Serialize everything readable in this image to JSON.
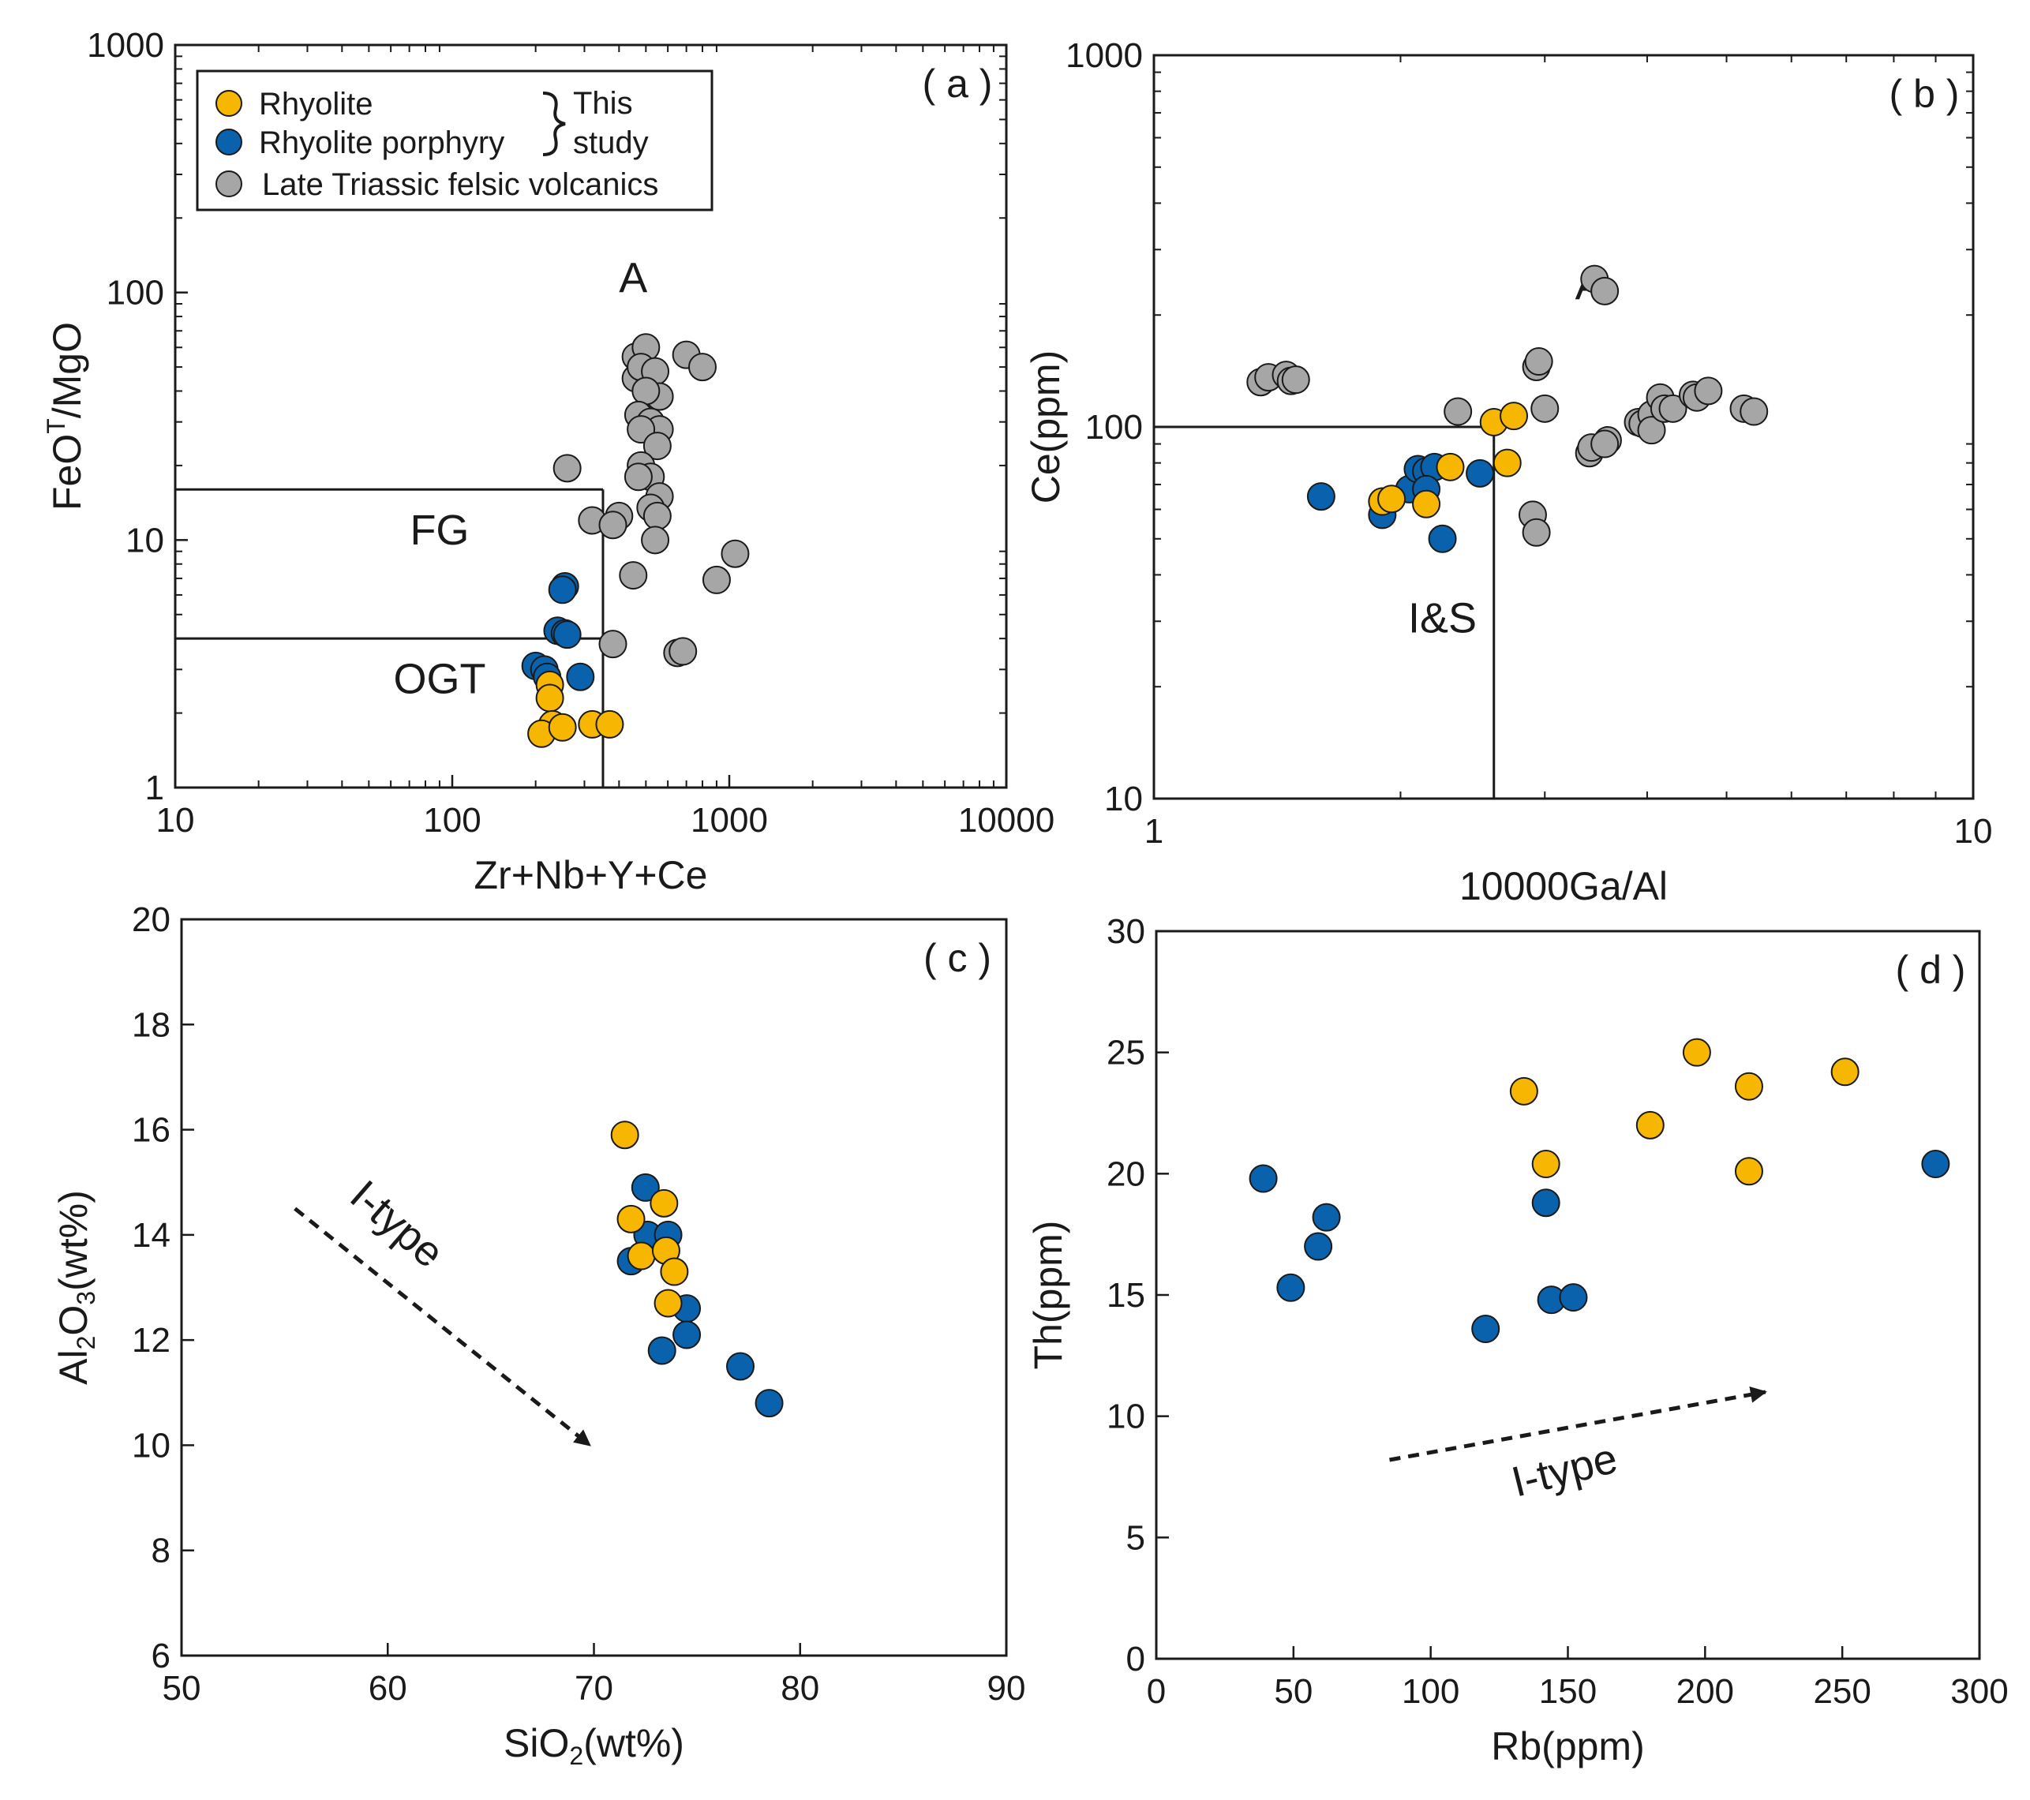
{
  "colors": {
    "rhyolite": "#F7B600",
    "rhyolite_porphyry": "#0A62AC",
    "late_triassic": "#A6A6A6",
    "marker_edge": "#1a1a1a",
    "axis": "#1a1a1a"
  },
  "legend": {
    "items": [
      {
        "label": "Rhyolite",
        "color": "#F7B600"
      },
      {
        "label": "Rhyolite porphyry",
        "color": "#0A62AC"
      },
      {
        "label": "Late  Triassic felsic volcanics",
        "color": "#A6A6A6"
      }
    ],
    "brace_line1": "This",
    "brace_line2": "study"
  },
  "chart_data": [
    {
      "id": "a",
      "type": "scatter",
      "panel_label": "( a )",
      "xlabel": "Zr+Nb+Y+Ce",
      "ylabel_main": "FeO",
      "ylabel_sup": "T",
      "ylabel_rest": "/MgO",
      "xscale": "log",
      "yscale": "log",
      "xlim": [
        10,
        10000
      ],
      "ylim": [
        1,
        1000
      ],
      "xticks": [
        {
          "v": 10,
          "label": "10"
        },
        {
          "v": 100,
          "label": "100"
        },
        {
          "v": 1000,
          "label": "1000"
        },
        {
          "v": 10000,
          "label": "10000"
        }
      ],
      "yticks": [
        {
          "v": 1,
          "label": "1"
        },
        {
          "v": 10,
          "label": "10"
        },
        {
          "v": 100,
          "label": "100"
        },
        {
          "v": 1000,
          "label": "1000"
        }
      ],
      "regions": [
        {
          "label": "A",
          "x": 450,
          "y": 100
        },
        {
          "label": "FG",
          "x": 90,
          "y": 9.6
        },
        {
          "label": "OGT",
          "x": 90,
          "y": 2.4
        }
      ],
      "boundaries": [
        {
          "x1": 10,
          "y1": 16,
          "x2": 350,
          "y2": 16
        },
        {
          "x1": 10,
          "y1": 4,
          "x2": 350,
          "y2": 4
        },
        {
          "x1": 350,
          "y1": 1,
          "x2": 350,
          "y2": 16
        }
      ],
      "series": [
        {
          "name": "Late Triassic felsic volcanics",
          "color": "#A6A6A6",
          "points": [
            [
              260,
              19.5
            ],
            [
              320,
              12
            ],
            [
              400,
              12.5
            ],
            [
              380,
              11.5
            ],
            [
              450,
              7.2
            ],
            [
              380,
              3.8
            ],
            [
              460,
              55
            ],
            [
              500,
              60
            ],
            [
              460,
              45
            ],
            [
              480,
              50
            ],
            [
              540,
              48
            ],
            [
              560,
              38
            ],
            [
              500,
              40
            ],
            [
              470,
              32
            ],
            [
              520,
              30
            ],
            [
              560,
              28
            ],
            [
              480,
              28
            ],
            [
              550,
              24
            ],
            [
              480,
              20
            ],
            [
              520,
              18
            ],
            [
              470,
              18
            ],
            [
              560,
              15
            ],
            [
              520,
              13.5
            ],
            [
              550,
              12.5
            ],
            [
              540,
              10
            ],
            [
              700,
              56
            ],
            [
              800,
              50
            ],
            [
              650,
              3.5
            ],
            [
              680,
              3.55
            ],
            [
              900,
              6.9
            ],
            [
              1050,
              8.8
            ]
          ]
        },
        {
          "name": "Rhyolite porphyry",
          "color": "#0A62AC",
          "points": [
            [
              255,
              6.5
            ],
            [
              250,
              6.3
            ],
            [
              240,
              4.3
            ],
            [
              255,
              4.2
            ],
            [
              260,
              4.15
            ],
            [
              200,
              3.1
            ],
            [
              215,
              3.0
            ],
            [
              220,
              2.8
            ],
            [
              290,
              2.8
            ]
          ]
        },
        {
          "name": "Rhyolite",
          "color": "#F7B600",
          "points": [
            [
              225,
              2.6
            ],
            [
              225,
              2.3
            ],
            [
              230,
              1.8
            ],
            [
              210,
              1.65
            ],
            [
              250,
              1.75
            ],
            [
              320,
              1.8
            ],
            [
              370,
              1.8
            ]
          ]
        }
      ]
    },
    {
      "id": "b",
      "type": "scatter",
      "panel_label": "( b )",
      "xlabel": "10000Ga/Al",
      "ylabel": "Ce(ppm)",
      "xscale": "log",
      "yscale": "log",
      "xlim": [
        1,
        10
      ],
      "ylim": [
        10,
        1000
      ],
      "xticks": [
        {
          "v": 1,
          "label": "1"
        },
        {
          "v": 10,
          "label": "10"
        }
      ],
      "yticks": [
        {
          "v": 10,
          "label": "10"
        },
        {
          "v": 100,
          "label": "100"
        },
        {
          "v": 1000,
          "label": "1000"
        }
      ],
      "regions": [
        {
          "label": "A",
          "x": 3.4,
          "y": 220
        },
        {
          "label": "I&S",
          "x": 2.25,
          "y": 28
        }
      ],
      "boundaries": [
        {
          "x1": 1,
          "y1": 100,
          "x2": 2.6,
          "y2": 100
        },
        {
          "x1": 2.6,
          "y1": 10,
          "x2": 2.6,
          "y2": 100
        }
      ],
      "series": [
        {
          "name": "Late Triassic felsic volcanics",
          "color": "#A6A6A6",
          "points": [
            [
              1.35,
              132
            ],
            [
              1.38,
              136
            ],
            [
              1.45,
              138
            ],
            [
              1.47,
              133
            ],
            [
              1.49,
              134
            ],
            [
              2.35,
              110
            ],
            [
              2.9,
              58
            ],
            [
              2.93,
              52
            ],
            [
              2.93,
              145
            ],
            [
              2.95,
              150
            ],
            [
              3.0,
              112
            ],
            [
              3.45,
              250
            ],
            [
              3.55,
              232
            ],
            [
              3.4,
              85
            ],
            [
              3.42,
              88
            ],
            [
              3.58,
              92
            ],
            [
              3.55,
              90
            ],
            [
              3.9,
              103
            ],
            [
              3.95,
              102
            ],
            [
              4.05,
              108
            ],
            [
              4.05,
              98
            ],
            [
              4.15,
              120
            ],
            [
              4.2,
              112
            ],
            [
              4.3,
              112
            ],
            [
              4.55,
              122
            ],
            [
              4.6,
              120
            ],
            [
              4.75,
              125
            ],
            [
              5.25,
              112
            ],
            [
              5.4,
              110
            ]
          ]
        },
        {
          "name": "Rhyolite porphyry",
          "color": "#0A62AC",
          "points": [
            [
              1.6,
              65
            ],
            [
              1.9,
              58
            ],
            [
              2.05,
              68
            ],
            [
              2.1,
              77
            ],
            [
              2.15,
              76
            ],
            [
              2.2,
              78
            ],
            [
              2.15,
              68
            ],
            [
              2.25,
              50
            ],
            [
              2.5,
              75
            ]
          ]
        },
        {
          "name": "Rhyolite",
          "color": "#F7B600",
          "points": [
            [
              1.9,
              63
            ],
            [
              1.95,
              64
            ],
            [
              2.15,
              62
            ],
            [
              2.3,
              78
            ],
            [
              2.6,
              103
            ],
            [
              2.75,
              107
            ],
            [
              2.7,
              80
            ]
          ]
        }
      ]
    },
    {
      "id": "c",
      "type": "scatter",
      "panel_label": "( c )",
      "xlabel_main": "SiO",
      "xlabel_sub": "2",
      "xlabel_rest": "(wt%)",
      "ylabel_main": "Al",
      "ylabel_sub1": "2",
      "ylabel_mid": "O",
      "ylabel_sub2": "3",
      "ylabel_rest": "(wt%)",
      "xscale": "linear",
      "yscale": "linear",
      "xlim": [
        50,
        90
      ],
      "ylim": [
        6,
        20
      ],
      "xticks": [
        {
          "v": 50,
          "label": "50"
        },
        {
          "v": 60,
          "label": "60"
        },
        {
          "v": 70,
          "label": "70"
        },
        {
          "v": 80,
          "label": "80"
        },
        {
          "v": 90,
          "label": "90"
        }
      ],
      "yticks": [
        {
          "v": 6,
          "label": "6"
        },
        {
          "v": 8,
          "label": "8"
        },
        {
          "v": 10,
          "label": "10"
        },
        {
          "v": 12,
          "label": "12"
        },
        {
          "v": 14,
          "label": "14"
        },
        {
          "v": 16,
          "label": "16"
        },
        {
          "v": 18,
          "label": "18"
        },
        {
          "v": 20,
          "label": "20"
        }
      ],
      "annotation": {
        "text": "I-type",
        "x": 60,
        "y": 14.0,
        "angle": 41
      },
      "arrow": {
        "x1": 55.5,
        "y1": 14.5,
        "x2": 69.8,
        "y2": 10.0
      },
      "series": [
        {
          "name": "Rhyolite porphyry",
          "color": "#0A62AC",
          "points": [
            [
              72.5,
              14.9
            ],
            [
              72.6,
              14.0
            ],
            [
              73.6,
              14.0
            ],
            [
              71.8,
              13.5
            ],
            [
              74.5,
              12.6
            ],
            [
              74.5,
              12.1
            ],
            [
              73.3,
              11.8
            ],
            [
              77.1,
              11.5
            ],
            [
              78.5,
              10.8
            ]
          ]
        },
        {
          "name": "Rhyolite",
          "color": "#F7B600",
          "points": [
            [
              71.5,
              15.9
            ],
            [
              71.8,
              14.3
            ],
            [
              73.4,
              14.6
            ],
            [
              72.3,
              13.6
            ],
            [
              73.5,
              13.7
            ],
            [
              73.9,
              13.3
            ],
            [
              73.6,
              12.7
            ]
          ]
        }
      ]
    },
    {
      "id": "d",
      "type": "scatter",
      "panel_label": "( d )",
      "xlabel": "Rb(ppm)",
      "ylabel": "Th(ppm)",
      "xscale": "linear",
      "yscale": "linear",
      "xlim": [
        0,
        300
      ],
      "ylim": [
        0,
        30
      ],
      "xticks": [
        {
          "v": 0,
          "label": "0"
        },
        {
          "v": 50,
          "label": "50"
        },
        {
          "v": 100,
          "label": "100"
        },
        {
          "v": 150,
          "label": "150"
        },
        {
          "v": 200,
          "label": "200"
        },
        {
          "v": 250,
          "label": "250"
        },
        {
          "v": 300,
          "label": "300"
        }
      ],
      "yticks": [
        {
          "v": 0,
          "label": "0"
        },
        {
          "v": 5,
          "label": "5"
        },
        {
          "v": 10,
          "label": "10"
        },
        {
          "v": 15,
          "label": "15"
        },
        {
          "v": 20,
          "label": "20"
        },
        {
          "v": 25,
          "label": "25"
        },
        {
          "v": 30,
          "label": "30"
        }
      ],
      "annotation": {
        "text": "I-type",
        "x": 150,
        "y": 7.2,
        "angle": -14
      },
      "arrow": {
        "x1": 85,
        "y1": 8.2,
        "x2": 222,
        "y2": 11.0
      },
      "series": [
        {
          "name": "Rhyolite porphyry",
          "color": "#0A62AC",
          "points": [
            [
              39,
              19.8
            ],
            [
              49,
              15.3
            ],
            [
              59,
              17.0
            ],
            [
              62,
              18.2
            ],
            [
              120,
              13.6
            ],
            [
              142,
              18.8
            ],
            [
              144,
              14.8
            ],
            [
              152,
              14.9
            ],
            [
              284,
              20.4
            ]
          ]
        },
        {
          "name": "Rhyolite",
          "color": "#F7B600",
          "points": [
            [
              134,
              23.4
            ],
            [
              142,
              20.4
            ],
            [
              180,
              22.0
            ],
            [
              197,
              25.0
            ],
            [
              216,
              23.6
            ],
            [
              216,
              20.1
            ],
            [
              251,
              24.2
            ]
          ]
        }
      ]
    }
  ]
}
